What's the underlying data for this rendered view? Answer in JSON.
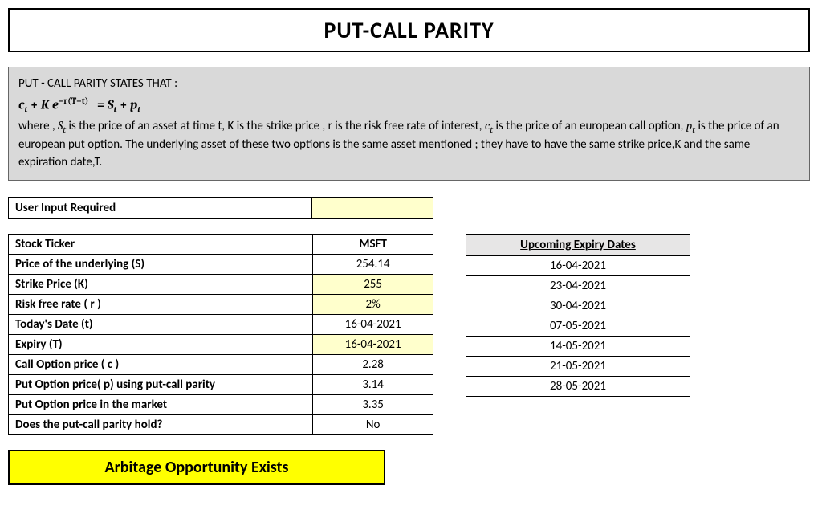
{
  "title": "PUT-CALL PARITY",
  "explain": {
    "heading": "PUT - CALL PARITY STATES THAT :",
    "desc1": "where , ",
    "desc2": " is the price of an asset at time t, K is the strike price , r is the risk free rate of interest, ",
    "desc3": " is the price of an european call option, ",
    "desc4": " is the price of an european put option. The underlying asset of these two options is the same asset mentioned ; they have to have the same strike price,K and the same expiration date,T."
  },
  "user_input_label": "User Input Required",
  "rows": {
    "ticker": {
      "label": "Stock Ticker",
      "value": "MSFT",
      "is_input": false,
      "is_header": true
    },
    "S": {
      "label": "Price of the underlying (S)",
      "value": "254.14",
      "is_input": false
    },
    "K": {
      "label": "Strike Price (K)",
      "value": "255",
      "is_input": true
    },
    "r": {
      "label": "Risk free rate ( r )",
      "value": "2%",
      "is_input": true
    },
    "t": {
      "label": "Today's Date (t)",
      "value": "16-04-2021",
      "is_input": false
    },
    "T": {
      "label": "Expiry (T)",
      "value": "16-04-2021",
      "is_input": true
    },
    "c": {
      "label": "Call Option price ( c )",
      "value": "2.28",
      "is_input": false
    },
    "p_parity": {
      "label": "Put Option price( p)  using put-call parity",
      "value": "3.14",
      "is_input": false
    },
    "p_market": {
      "label": "Put Option price  in the market",
      "value": "3.35",
      "is_input": false
    },
    "holds": {
      "label": "Does the put-call parity hold?",
      "value": "No",
      "is_input": false
    }
  },
  "expiry": {
    "header": "Upcoming Expiry Dates",
    "dates": [
      "16-04-2021",
      "23-04-2021",
      "30-04-2021",
      "07-05-2021",
      "14-05-2021",
      "21-05-2021",
      "28-05-2021"
    ]
  },
  "result": "Arbitage Opportunity Exists",
  "colors": {
    "input_bg": "#ffffcc",
    "explain_bg": "#d9d9d9",
    "result_bg": "#ffff00",
    "expiry_header_bg": "#e7e6e6"
  }
}
